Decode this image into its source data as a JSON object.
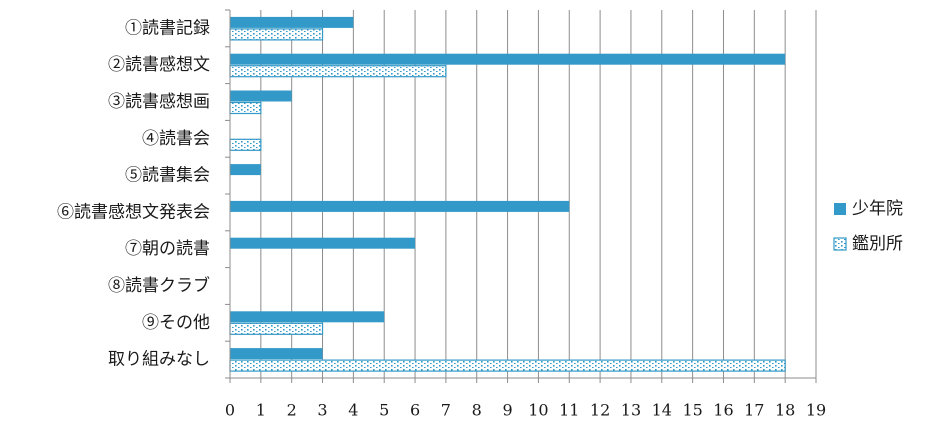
{
  "chart_data": {
    "type": "bar",
    "orientation": "horizontal",
    "categories": [
      "①読書記録",
      "②読書感想文",
      "③読書感想画",
      "④読書会",
      "⑤読書集会",
      "⑥読書感想文発表会",
      "⑦朝の読書",
      "⑧読書クラブ",
      "⑨その他",
      "取り組みなし"
    ],
    "series": [
      {
        "name": "少年院",
        "values": [
          4,
          18,
          2,
          0,
          1,
          11,
          6,
          0,
          5,
          3
        ],
        "color": "#3399c8",
        "pattern": "solid"
      },
      {
        "name": "鑑別所",
        "values": [
          3,
          7,
          1,
          1,
          0,
          0,
          0,
          0,
          3,
          18
        ],
        "color": "#3399c8",
        "pattern": "dotted"
      }
    ],
    "xlim": [
      0,
      19
    ],
    "x_ticks": [
      "0",
      "1",
      "2",
      "3",
      "4",
      "5",
      "6",
      "7",
      "8",
      "9",
      "10",
      "11",
      "12",
      "13",
      "14",
      "15",
      "16",
      "17",
      "18",
      "19"
    ],
    "grid": true,
    "legend_position": "right",
    "title": "",
    "xlabel": "",
    "ylabel": ""
  }
}
